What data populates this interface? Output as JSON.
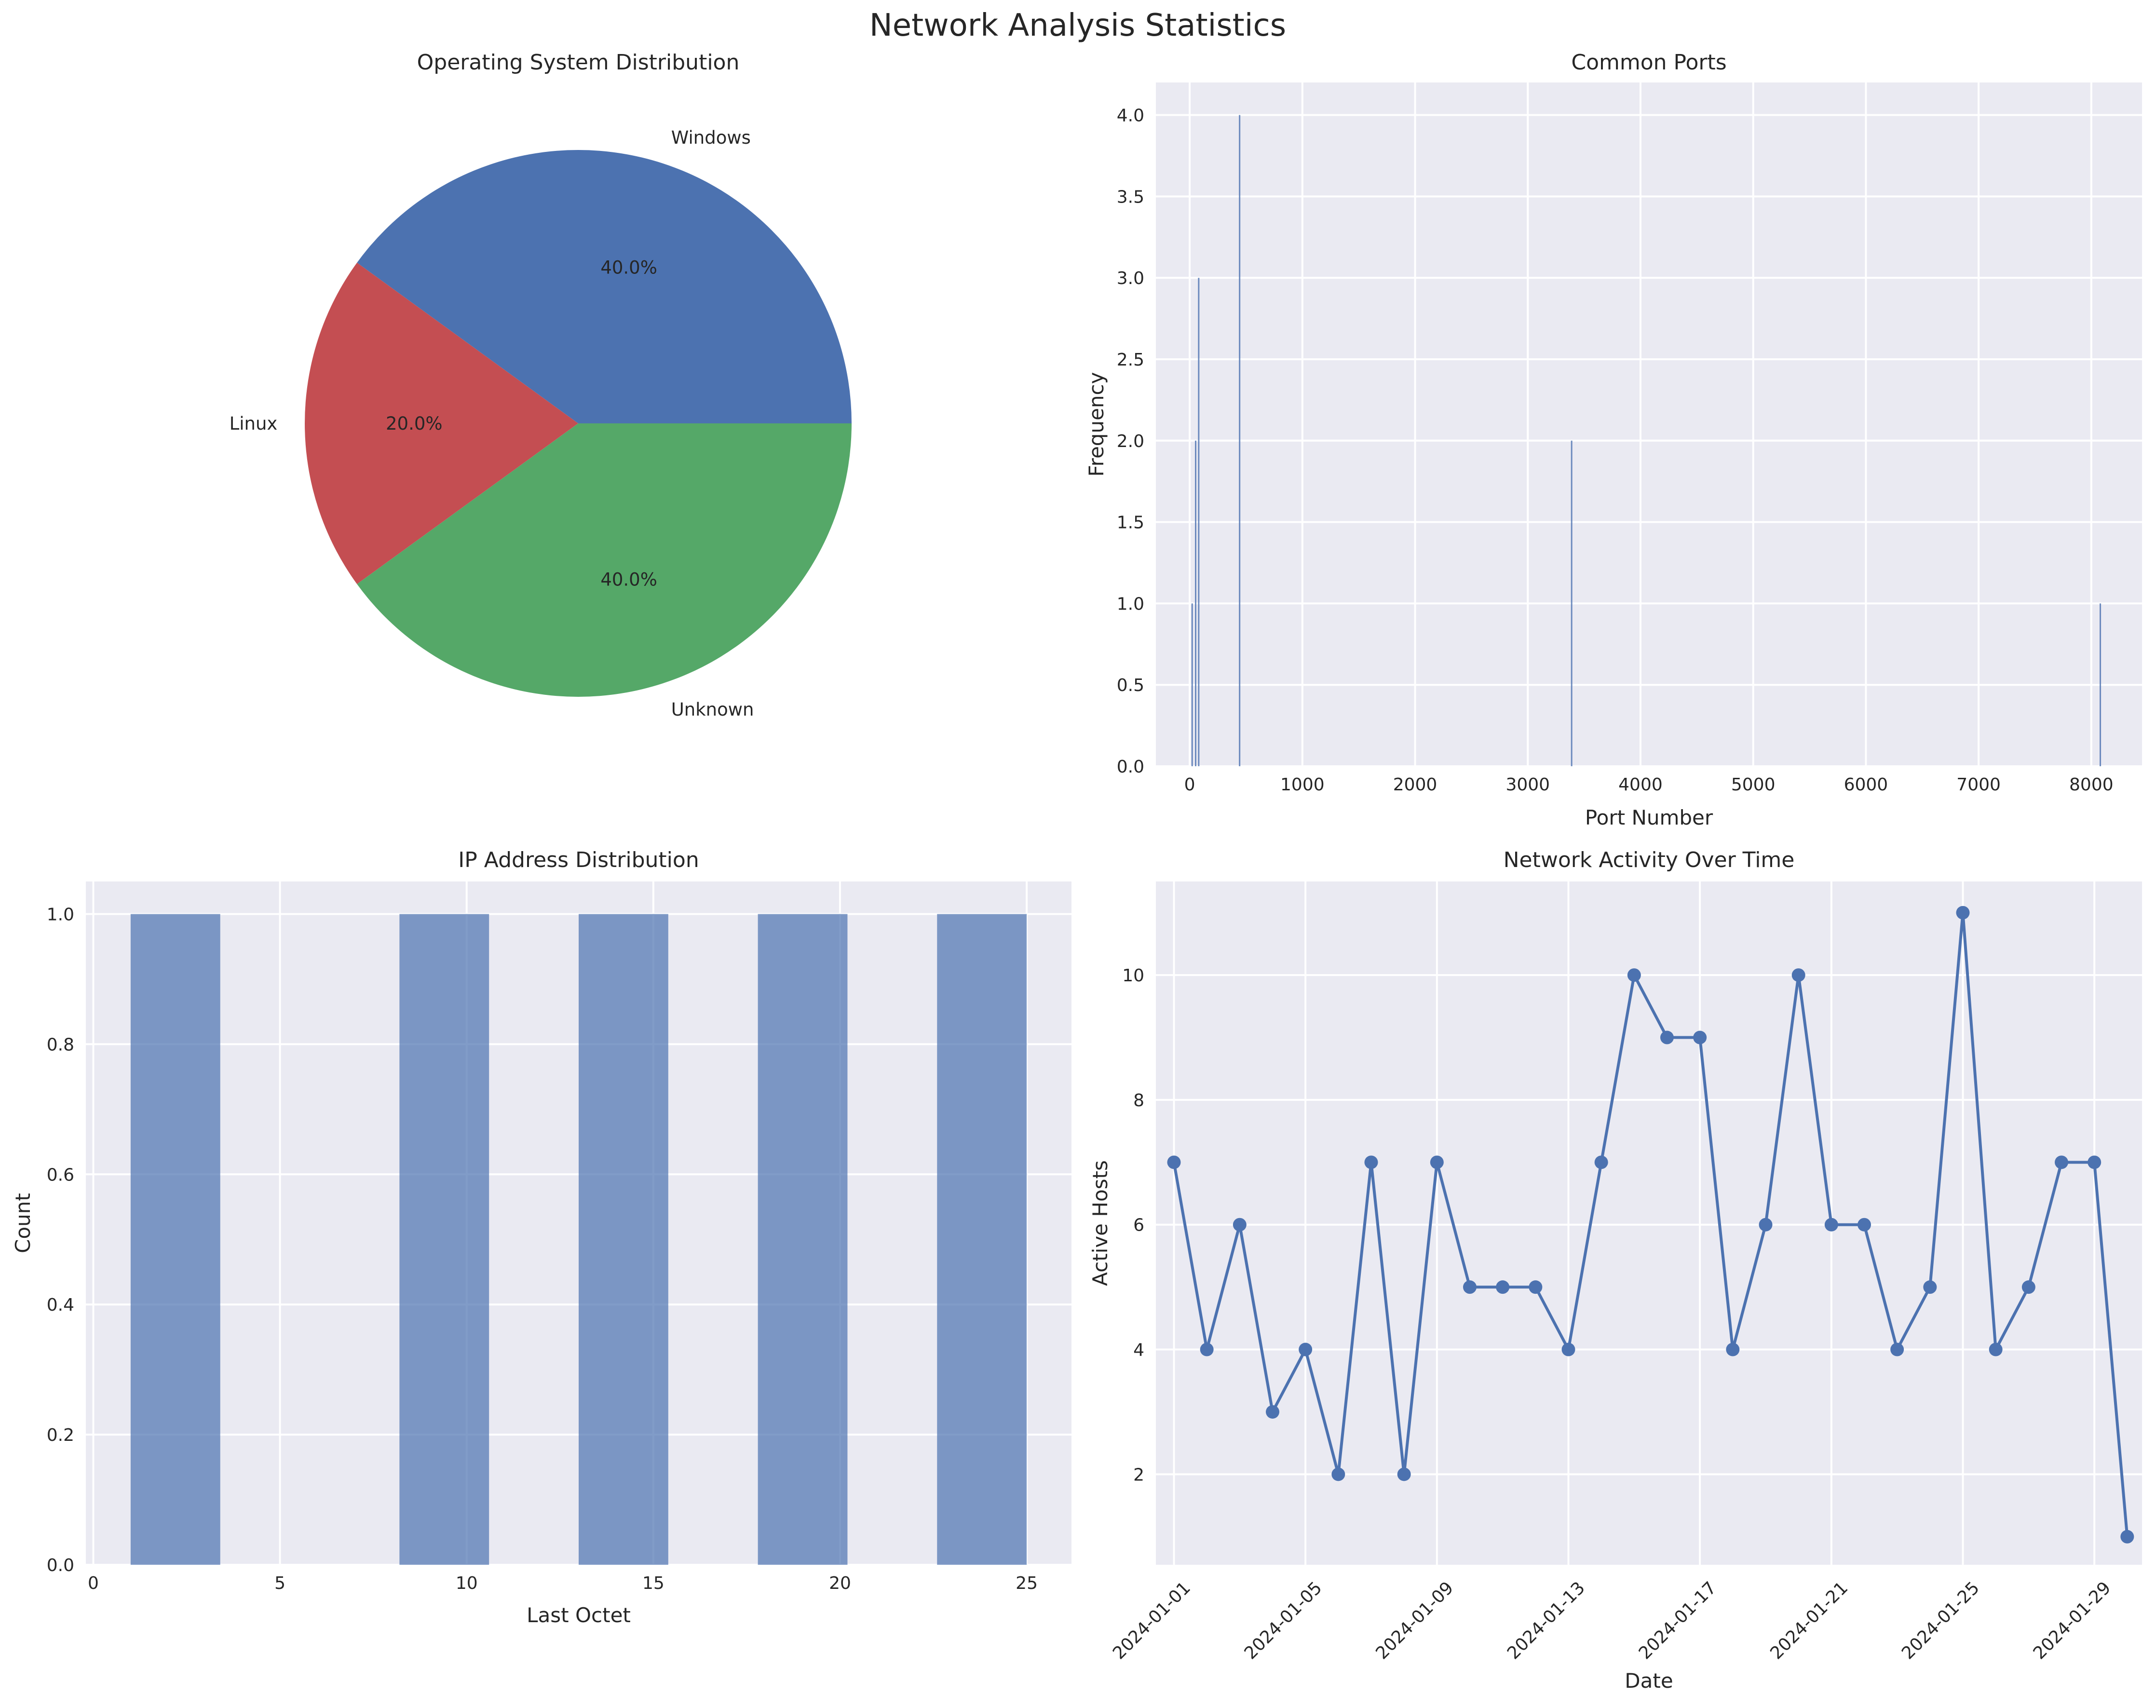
{
  "figure": {
    "title": "Network Analysis Statistics"
  },
  "chart_data": [
    {
      "type": "pie",
      "title": "Operating System Distribution",
      "labels": [
        "Windows",
        "Linux",
        "Unknown"
      ],
      "values": [
        40.0,
        20.0,
        40.0
      ],
      "pct_labels": [
        "40.0%",
        "20.0%",
        "40.0%"
      ],
      "colors": [
        "#4c72b0",
        "#c44e52",
        "#55a868"
      ]
    },
    {
      "type": "bar",
      "title": "Common Ports",
      "xlabel": "Port Number",
      "ylabel": "Frequency",
      "xlim": [
        -300,
        8450
      ],
      "ylim": [
        0,
        4.2
      ],
      "xticks": [
        0,
        1000,
        2000,
        3000,
        4000,
        5000,
        6000,
        7000,
        8000
      ],
      "yticks": [
        0.0,
        0.5,
        1.0,
        1.5,
        2.0,
        2.5,
        3.0,
        3.5,
        4.0
      ],
      "bars": [
        {
          "x": 22,
          "value": 1
        },
        {
          "x": 53,
          "value": 2
        },
        {
          "x": 80,
          "value": 3
        },
        {
          "x": 443,
          "value": 4
        },
        {
          "x": 3389,
          "value": 2
        },
        {
          "x": 8080,
          "value": 1
        }
      ],
      "color": "#4c72b0"
    },
    {
      "type": "bar",
      "title": "IP Address Distribution",
      "xlabel": "Last Octet",
      "ylabel": "Count",
      "xlim": [
        -0.2,
        26.2
      ],
      "ylim": [
        0,
        1.05
      ],
      "xticks": [
        0,
        5,
        10,
        15,
        20,
        25
      ],
      "yticks": [
        0.0,
        0.2,
        0.4,
        0.6,
        0.8,
        1.0
      ],
      "bins": [
        {
          "start": 1.0,
          "end": 3.4,
          "count": 1
        },
        {
          "start": 8.2,
          "end": 10.6,
          "count": 1
        },
        {
          "start": 13.0,
          "end": 15.4,
          "count": 1
        },
        {
          "start": 17.8,
          "end": 20.2,
          "count": 1
        },
        {
          "start": 22.6,
          "end": 25.0,
          "count": 1
        }
      ],
      "color": "#4c72b0"
    },
    {
      "type": "line",
      "title": "Network Activity Over Time",
      "xlabel": "Date",
      "ylabel": "Active Hosts",
      "xlim": [
        0.45,
        30.45
      ],
      "ylim": [
        0.55,
        11.5
      ],
      "xtick_days": [
        1,
        5,
        9,
        13,
        17,
        21,
        25,
        29
      ],
      "xtick_labels": [
        "2024-01-01",
        "2024-01-05",
        "2024-01-09",
        "2024-01-13",
        "2024-01-17",
        "2024-01-21",
        "2024-01-25",
        "2024-01-29"
      ],
      "yticks": [
        2,
        4,
        6,
        8,
        10
      ],
      "dates": [
        "2024-01-01",
        "2024-01-02",
        "2024-01-03",
        "2024-01-04",
        "2024-01-05",
        "2024-01-06",
        "2024-01-07",
        "2024-01-08",
        "2024-01-09",
        "2024-01-10",
        "2024-01-11",
        "2024-01-12",
        "2024-01-13",
        "2024-01-14",
        "2024-01-15",
        "2024-01-16",
        "2024-01-17",
        "2024-01-18",
        "2024-01-19",
        "2024-01-20",
        "2024-01-21",
        "2024-01-22",
        "2024-01-23",
        "2024-01-24",
        "2024-01-25",
        "2024-01-26",
        "2024-01-27",
        "2024-01-28",
        "2024-01-29",
        "2024-01-30"
      ],
      "values": [
        7,
        4,
        6,
        3,
        4,
        2,
        7,
        2,
        7,
        5,
        5,
        5,
        4,
        7,
        10,
        9,
        9,
        4,
        6,
        10,
        6,
        6,
        4,
        5,
        11,
        4,
        5,
        7,
        7,
        1
      ],
      "color": "#4c72b0"
    }
  ]
}
